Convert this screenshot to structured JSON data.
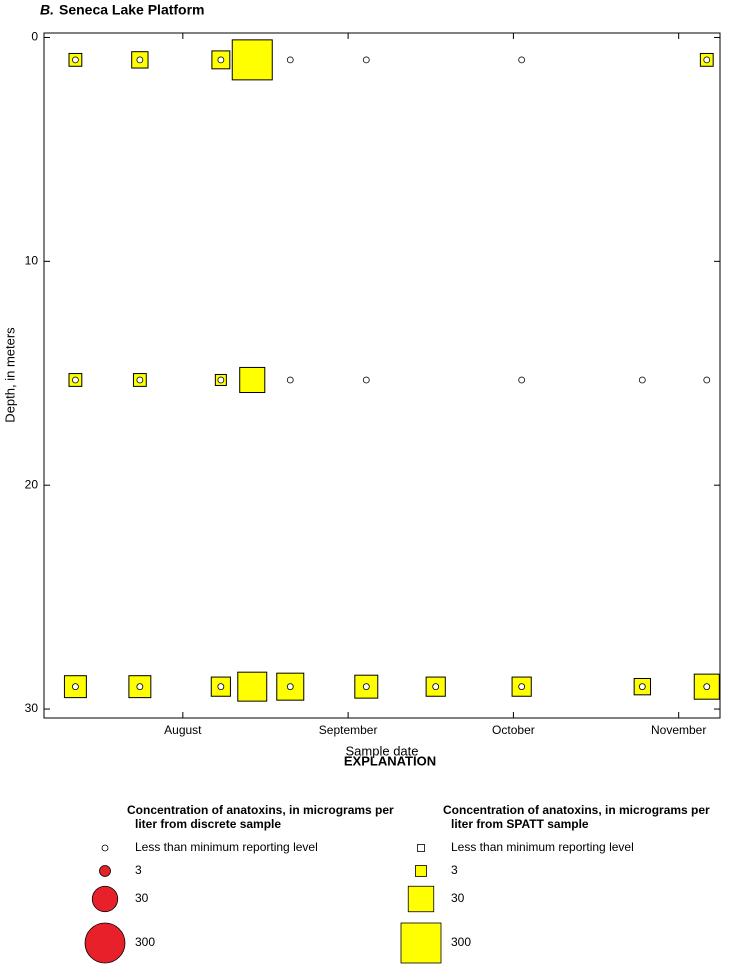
{
  "chart_data": {
    "type": "scatter",
    "panel": "B.",
    "title": "Seneca Lake Platform",
    "x_label": "Sample date",
    "y_label": "Depth, in meters",
    "xlim": [
      7.16,
      11.25
    ],
    "xticks": [
      {
        "value": 8,
        "label": "August"
      },
      {
        "value": 9,
        "label": "September"
      },
      {
        "value": 10,
        "label": "October"
      },
      {
        "value": 11,
        "label": "November"
      }
    ],
    "ylim": [
      -0.2,
      30.4
    ],
    "y_inverted": true,
    "yticks": [
      0,
      10,
      20,
      30
    ],
    "series": [
      {
        "name": "Concentration of anatoxins, in micrograms per liter from discrete sample",
        "marker": "circle",
        "color": "#e8202a",
        "x": [
          7.35,
          7.74,
          8.23,
          8.65,
          9.11,
          10.05,
          11.17,
          7.35,
          7.74,
          8.23,
          8.65,
          9.11,
          10.05,
          10.78,
          11.17,
          7.35,
          7.74,
          8.23,
          8.65,
          9.11,
          9.53,
          10.05,
          10.78,
          11.17
        ],
        "y": [
          1,
          1,
          1,
          1,
          1,
          1,
          1,
          15.3,
          15.3,
          15.3,
          15.3,
          15.3,
          15.3,
          15.3,
          15.3,
          29,
          29,
          29,
          29,
          29,
          29,
          29,
          29,
          29
        ]
      },
      {
        "name": "Concentration of anatoxins, in micrograms per liter from SPATT sample",
        "marker": "square",
        "color": "#ffff00",
        "x": [
          7.35,
          7.74,
          8.23,
          8.42,
          11.17,
          7.35,
          7.74,
          8.23,
          8.42,
          7.35,
          7.74,
          8.23,
          8.42,
          8.65,
          9.11,
          9.53,
          10.05,
          10.78,
          11.17
        ],
        "y": [
          1,
          1,
          1,
          1,
          1,
          15.3,
          15.3,
          15.3,
          15.3,
          29,
          29,
          29,
          29,
          29,
          29,
          29,
          29,
          29,
          29
        ],
        "sizes": [
          4,
          7,
          9,
          300,
          4,
          4,
          4,
          3,
          28,
          17,
          17,
          11,
          52,
          38,
          20,
          11,
          11,
          7,
          28
        ]
      }
    ],
    "legend": {
      "title": "EXPLANATION",
      "below_label": "Less than minimum reporting level",
      "values": [
        3,
        30,
        300
      ]
    }
  }
}
